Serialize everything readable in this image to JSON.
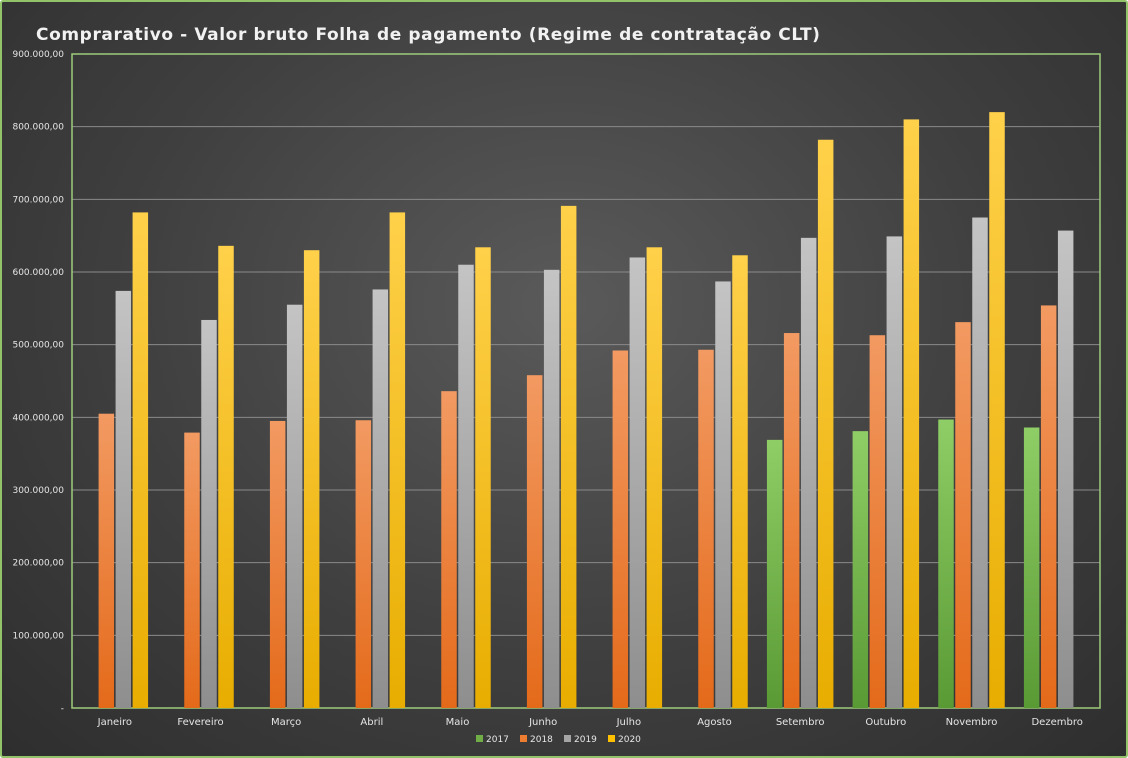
{
  "chart_data": {
    "type": "bar",
    "title": "Comprarativo - Valor bruto Folha de pagamento (Regime de contratação CLT)",
    "xlabel": "",
    "ylabel": "",
    "ylim": [
      0,
      900000
    ],
    "ytick_values": [
      0,
      100000,
      200000,
      300000,
      400000,
      500000,
      600000,
      700000,
      800000,
      900000
    ],
    "ytick_labels": [
      "-",
      "100.000,00",
      "200.000,00",
      "300.000,00",
      "400.000,00",
      "500.000,00",
      "600.000,00",
      "700.000,00",
      "800.000,00",
      "900.000,00"
    ],
    "grid": true,
    "legend_position": "bottom",
    "categories": [
      "Janeiro",
      "Fevereiro",
      "Março",
      "Abril",
      "Maio",
      "Junho",
      "Julho",
      "Agosto",
      "Setembro",
      "Outubro",
      "Novembro",
      "Dezembro"
    ],
    "series": [
      {
        "name": "2017",
        "color": "#70ad47",
        "values": [
          null,
          null,
          null,
          null,
          null,
          null,
          null,
          null,
          369000,
          381000,
          397000,
          386000
        ]
      },
      {
        "name": "2018",
        "color": "#ed7d31",
        "values": [
          405000,
          379000,
          395000,
          396000,
          436000,
          458000,
          492000,
          493000,
          516000,
          513000,
          531000,
          554000
        ]
      },
      {
        "name": "2019",
        "color": "#a5a5a5",
        "values": [
          574000,
          534000,
          555000,
          576000,
          610000,
          603000,
          620000,
          587000,
          647000,
          649000,
          675000,
          657000
        ]
      },
      {
        "name": "2020",
        "color": "#ffc000",
        "values": [
          682000,
          636000,
          630000,
          682000,
          634000,
          691000,
          634000,
          623000,
          782000,
          810000,
          820000,
          null
        ]
      }
    ]
  }
}
